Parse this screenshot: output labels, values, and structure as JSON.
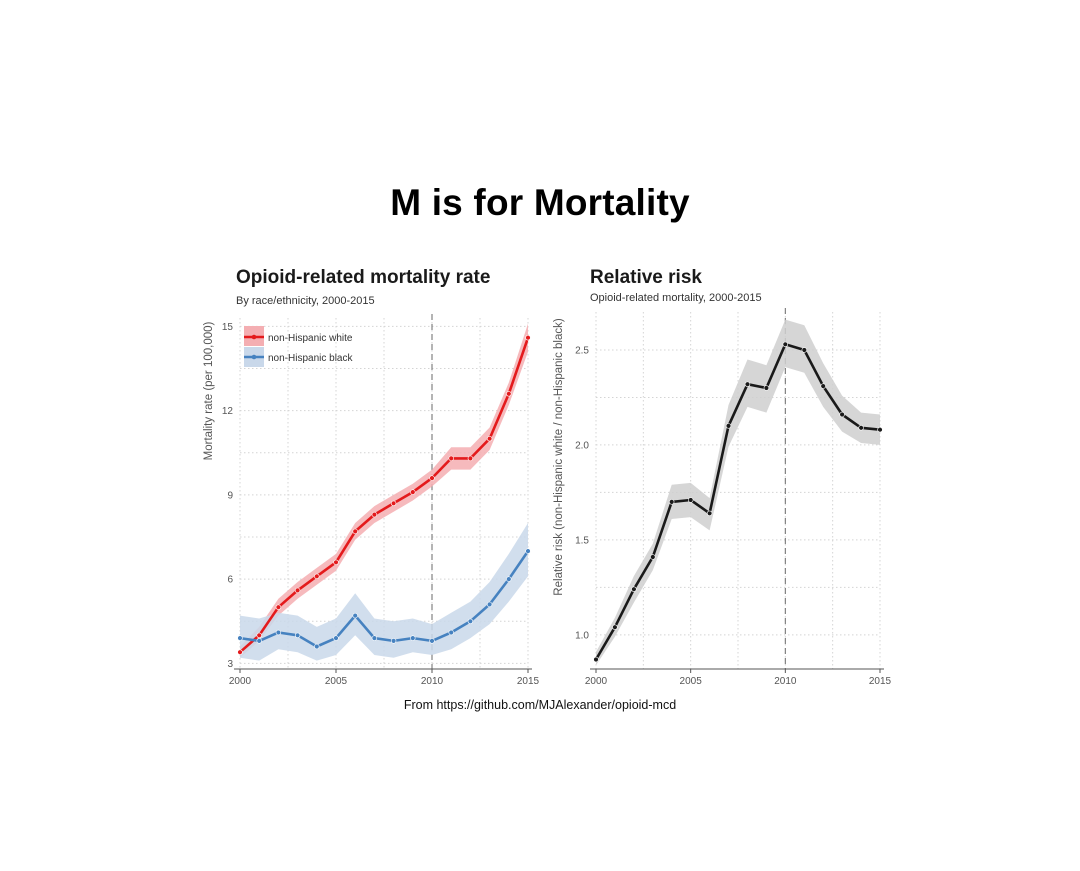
{
  "page": {
    "title": "M is for Mortality",
    "credit": "From https://github.com/MJAlexander/opioid-mcd"
  },
  "chart_data": [
    {
      "type": "line",
      "title": "Opioid-related mortality rate",
      "subtitle": "By race/ethnicity, 2000-2015",
      "xlabel": "",
      "ylabel": "Mortality rate (per 100,000)",
      "xlim": [
        2000,
        2015
      ],
      "ylim": [
        2.8,
        15.3
      ],
      "xticks": [
        2000,
        2005,
        2010,
        2015
      ],
      "yticks": [
        3,
        6,
        9,
        12,
        15
      ],
      "grid": true,
      "reference_line_x": 2010,
      "legend_position": "top-left",
      "x": [
        2000,
        2001,
        2002,
        2003,
        2004,
        2005,
        2006,
        2007,
        2008,
        2009,
        2010,
        2011,
        2012,
        2013,
        2014,
        2015
      ],
      "series": [
        {
          "name": "non-Hispanic white",
          "color": "#e41a1c",
          "band_color": "#f4aeb2",
          "values": [
            3.4,
            4.0,
            5.0,
            5.6,
            6.1,
            6.6,
            7.7,
            8.3,
            8.7,
            9.1,
            9.6,
            10.3,
            10.3,
            11.0,
            12.6,
            14.6
          ],
          "lower": [
            3.2,
            3.8,
            4.7,
            5.3,
            5.8,
            6.3,
            7.4,
            8.0,
            8.4,
            8.8,
            9.3,
            9.9,
            9.9,
            10.6,
            12.2,
            14.1
          ],
          "upper": [
            3.6,
            4.3,
            5.3,
            5.9,
            6.4,
            6.9,
            8.0,
            8.6,
            9.0,
            9.4,
            9.9,
            10.7,
            10.7,
            11.4,
            13.0,
            15.1
          ]
        },
        {
          "name": "non-Hispanic black",
          "color": "#4682c0",
          "band_color": "#c9d8ea",
          "values": [
            3.9,
            3.8,
            4.1,
            4.0,
            3.6,
            3.9,
            4.7,
            3.9,
            3.8,
            3.9,
            3.8,
            4.1,
            4.5,
            5.1,
            6.0,
            7.0
          ],
          "lower": [
            3.2,
            3.1,
            3.5,
            3.4,
            3.1,
            3.3,
            4.0,
            3.3,
            3.2,
            3.4,
            3.3,
            3.5,
            3.9,
            4.4,
            5.2,
            6.1
          ],
          "upper": [
            4.7,
            4.6,
            4.8,
            4.7,
            4.3,
            4.6,
            5.5,
            4.6,
            4.5,
            4.6,
            4.4,
            4.8,
            5.2,
            5.9,
            6.9,
            8.0
          ]
        }
      ]
    },
    {
      "type": "line",
      "title": "Relative risk",
      "subtitle": "Opioid-related mortality, 2000-2015",
      "xlabel": "",
      "ylabel": "Relative risk (non-Hispanic white / non-Hispanic black)",
      "xlim": [
        2000,
        2015
      ],
      "ylim": [
        0.82,
        2.7
      ],
      "xticks": [
        2000,
        2005,
        2010,
        2015
      ],
      "yticks": [
        1.0,
        1.5,
        2.0,
        2.5
      ],
      "grid": true,
      "reference_line_x": 2010,
      "x": [
        2000,
        2001,
        2002,
        2003,
        2004,
        2005,
        2006,
        2007,
        2008,
        2009,
        2010,
        2011,
        2012,
        2013,
        2014,
        2015
      ],
      "series": [
        {
          "name": "Relative risk",
          "color": "#1a1a1a",
          "band_color": "#cfcfcf",
          "values": [
            0.87,
            1.04,
            1.24,
            1.41,
            1.7,
            1.71,
            1.64,
            2.1,
            2.32,
            2.3,
            2.53,
            2.5,
            2.31,
            2.16,
            2.09,
            2.08
          ],
          "lower": [
            0.84,
            0.99,
            1.17,
            1.34,
            1.61,
            1.62,
            1.55,
            1.99,
            2.2,
            2.17,
            2.41,
            2.38,
            2.2,
            2.07,
            2.01,
            2.0
          ],
          "upper": [
            0.91,
            1.09,
            1.31,
            1.48,
            1.79,
            1.8,
            1.72,
            2.21,
            2.45,
            2.42,
            2.66,
            2.63,
            2.43,
            2.26,
            2.17,
            2.16
          ]
        }
      ]
    }
  ]
}
